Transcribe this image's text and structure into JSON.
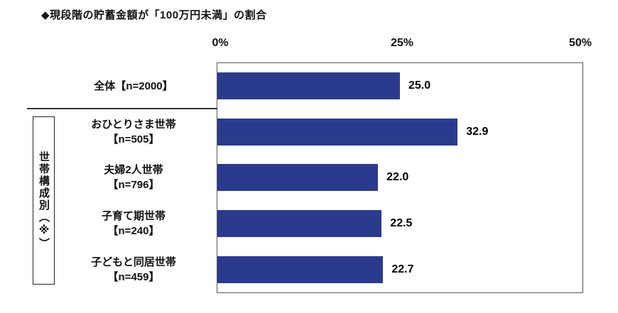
{
  "title": "◆現段階の貯蓄金額が「100万円未満」の割合",
  "group_box_label": "世帯構成別（※）",
  "chart_data": {
    "type": "bar",
    "orientation": "horizontal",
    "title": "現段階の貯蓄金額が「100万円未満」の割合",
    "categories": [
      "全体【n=2000】",
      "おひとりさま世帯【n=505】",
      "夫婦2人世帯【n=796】",
      "子育て期世帯【n=240】",
      "子どもと同居世帯【n=459】"
    ],
    "values": [
      25.0,
      32.9,
      22.0,
      22.5,
      22.7
    ],
    "value_labels": [
      "25.0",
      "32.9",
      "22.0",
      "22.5",
      "22.7"
    ],
    "xlim": [
      0,
      50
    ],
    "xticks": [
      0,
      25,
      50
    ],
    "xtick_labels": [
      "0%",
      "25%",
      "50%"
    ],
    "bar_color": "#2a3b8e",
    "legend": "none",
    "grid": "off",
    "group_label": "世帯構成別（※）",
    "rows": [
      {
        "lines": [
          "全体【n=2000】"
        ],
        "value": 25.0,
        "label": "25.0"
      },
      {
        "lines": [
          "おひとりさま世帯",
          "【n=505】"
        ],
        "value": 32.9,
        "label": "32.9"
      },
      {
        "lines": [
          "夫婦2人世帯",
          "【n=796】"
        ],
        "value": 22.0,
        "label": "22.0"
      },
      {
        "lines": [
          "子育て期世帯",
          "【n=240】"
        ],
        "value": 22.5,
        "label": "22.5"
      },
      {
        "lines": [
          "子どもと同居世帯",
          "【n=459】"
        ],
        "value": 22.7,
        "label": "22.7"
      }
    ]
  }
}
